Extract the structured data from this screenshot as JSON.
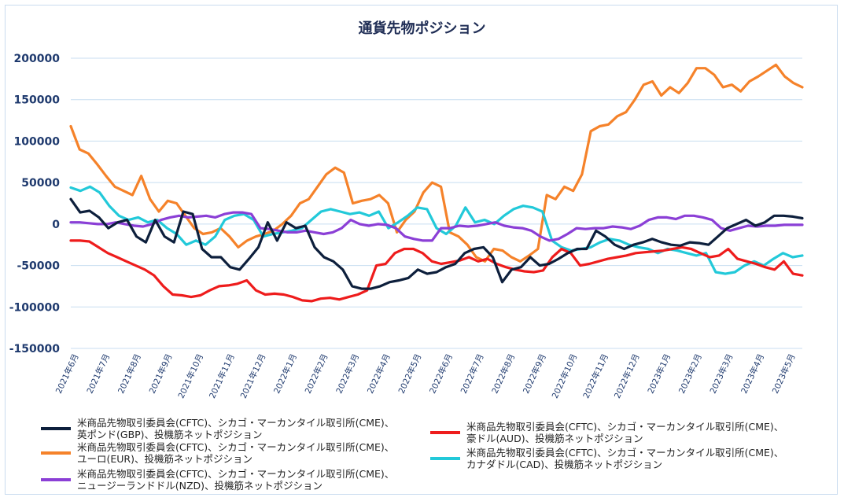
{
  "chart_data": {
    "type": "line",
    "title": "通貨先物ポジション",
    "xlabel": "",
    "ylabel": "",
    "ylim": [
      -150000,
      200000
    ],
    "yticks": [
      200000,
      150000,
      100000,
      50000,
      0,
      -50000,
      -100000,
      -150000
    ],
    "ytick_labels": [
      "200000",
      "150000",
      "100000",
      "50000",
      "0",
      "-50000",
      "-100000",
      "-150000"
    ],
    "grid": true,
    "legend_position": "bottom",
    "x_tick_labels": [
      "2021年6月",
      "2021年7月",
      "2021年8月",
      "2021年9月",
      "2021年10月",
      "2021年11月",
      "2021年12月",
      "2022年1月",
      "2022年2月",
      "2022年3月",
      "2022年4月",
      "2022年5月",
      "2022年6月",
      "2022年7月",
      "2022年8月",
      "2022年9月",
      "2022年10月",
      "2022年11月",
      "2022年12月",
      "2023年1月",
      "2023年2月",
      "2023年3月",
      "2023年4月",
      "2023年5月"
    ],
    "series": [
      {
        "name": "米商品先物取引委員会(CFTC)、シカゴ・マーカンタイル取引所(CME)、\n英ポンド(GBP)、投機筋ネットポジション",
        "color": "#0d1f3c",
        "values": [
          30000,
          14000,
          16000,
          8000,
          -5000,
          2000,
          5000,
          -15000,
          -22000,
          5000,
          -15000,
          -22000,
          15000,
          12000,
          -30000,
          -40000,
          -40000,
          -52000,
          -55000,
          -42000,
          -28000,
          2000,
          -20000,
          2000,
          -5000,
          -2000,
          -28000,
          -40000,
          -45000,
          -55000,
          -75000,
          -78000,
          -78000,
          -75000,
          -70000,
          -68000,
          -65000,
          -55000,
          -60000,
          -58000,
          -52000,
          -48000,
          -35000,
          -30000,
          -28000,
          -40000,
          -70000,
          -55000,
          -52000,
          -40000,
          -50000,
          -48000,
          -42000,
          -35000,
          -30000,
          -30000,
          -8000,
          -15000,
          -25000,
          -30000,
          -25000,
          -22000,
          -18000,
          -22000,
          -25000,
          -26000,
          -22000,
          -23000,
          -25000,
          -15000,
          -5000,
          0,
          5000,
          -2000,
          2000,
          10000,
          10000,
          9000,
          7000
        ]
      },
      {
        "name": "米商品先物取引委員会(CFTC)、シカゴ・マーカンタイル取引所(CME)、\n豪ドル(AUD)、投機筋ネットポジション",
        "color": "#ee1c1c",
        "values": [
          -20000,
          -20000,
          -21000,
          -28000,
          -35000,
          -40000,
          -45000,
          -50000,
          -55000,
          -62000,
          -75000,
          -85000,
          -86000,
          -88000,
          -86000,
          -80000,
          -75000,
          -74000,
          -72000,
          -68000,
          -80000,
          -85000,
          -84000,
          -85000,
          -88000,
          -92000,
          -93000,
          -90000,
          -89000,
          -91000,
          -88000,
          -85000,
          -80000,
          -50000,
          -48000,
          -35000,
          -30000,
          -30000,
          -35000,
          -45000,
          -48000,
          -46000,
          -44000,
          -40000,
          -45000,
          -42000,
          -48000,
          -52000,
          -55000,
          -57000,
          -58000,
          -56000,
          -40000,
          -30000,
          -35000,
          -50000,
          -48000,
          -45000,
          -42000,
          -40000,
          -38000,
          -35000,
          -34000,
          -33000,
          -32000,
          -30000,
          -28000,
          -30000,
          -35000,
          -40000,
          -38000,
          -30000,
          -42000,
          -45000,
          -48000,
          -52000,
          -55000,
          -45000,
          -60000,
          -62000
        ]
      },
      {
        "name": "米商品先物取引委員会(CFTC)、シカゴ・マーカンタイル取引所(CME)、\nユーロ(EUR)、投機筋ネットポジション",
        "color": "#f5822a",
        "values": [
          118000,
          90000,
          85000,
          72000,
          58000,
          45000,
          40000,
          35000,
          58000,
          30000,
          15000,
          28000,
          25000,
          10000,
          -5000,
          -12000,
          -10000,
          -5000,
          -15000,
          -28000,
          -20000,
          -15000,
          -12000,
          -8000,
          0,
          10000,
          25000,
          30000,
          45000,
          60000,
          68000,
          62000,
          25000,
          28000,
          30000,
          35000,
          25000,
          -10000,
          5000,
          15000,
          38000,
          50000,
          45000,
          -10000,
          -15000,
          -25000,
          -40000,
          -45000,
          -30000,
          -32000,
          -40000,
          -45000,
          -38000,
          -30000,
          35000,
          30000,
          45000,
          40000,
          60000,
          112000,
          118000,
          120000,
          130000,
          135000,
          150000,
          168000,
          172000,
          155000,
          165000,
          158000,
          170000,
          188000,
          188000,
          180000,
          165000,
          168000,
          160000,
          172000,
          178000,
          185000,
          192000,
          178000,
          170000,
          165000
        ]
      },
      {
        "name": "米商品先物取引委員会(CFTC)、シカゴ・マーカンタイル取引所(CME)、\nカナダドル(CAD)、投機筋ネットポジション",
        "color": "#22c9d9",
        "values": [
          44000,
          40000,
          45000,
          38000,
          22000,
          10000,
          5000,
          8000,
          2000,
          5000,
          -5000,
          -12000,
          -25000,
          -20000,
          -25000,
          -15000,
          5000,
          10000,
          12000,
          5000,
          -15000,
          -12000,
          -10000,
          -8000,
          -5000,
          5000,
          15000,
          18000,
          15000,
          12000,
          14000,
          10000,
          15000,
          -5000,
          2000,
          10000,
          20000,
          18000,
          -5000,
          -12000,
          -2000,
          20000,
          2000,
          5000,
          0,
          10000,
          18000,
          22000,
          20000,
          15000,
          -20000,
          -28000,
          -32000,
          -30000,
          -28000,
          -22000,
          -18000,
          -20000,
          -25000,
          -28000,
          -30000,
          -35000,
          -30000,
          -32000,
          -35000,
          -38000,
          -35000,
          -58000,
          -60000,
          -58000,
          -50000,
          -45000,
          -50000,
          -42000,
          -35000,
          -40000,
          -38000
        ]
      },
      {
        "name": "米商品先物取引委員会(CFTC)、シカゴ・マーカンタイル取引所(CME)、\nニュージーランドドル(NZD)、投機筋ネットポジション",
        "color": "#8b3fd6",
        "values": [
          2000,
          2000,
          1000,
          0,
          0,
          2000,
          0,
          -2000,
          -3000,
          0,
          5000,
          8000,
          10000,
          8000,
          9000,
          10000,
          8000,
          12000,
          14000,
          14000,
          12000,
          -5000,
          -6000,
          -8000,
          -10000,
          -10000,
          -8000,
          -10000,
          -12000,
          -10000,
          -5000,
          5000,
          0,
          -2000,
          0,
          -1000,
          -5000,
          -15000,
          -18000,
          -20000,
          -20000,
          -5000,
          -5000,
          -2000,
          -3000,
          -2000,
          0,
          2000,
          -2000,
          -4000,
          -5000,
          -8000,
          -15000,
          -20000,
          -18000,
          -12000,
          -5000,
          -6000,
          -5000,
          -5000,
          -3000,
          -4000,
          -6000,
          -2000,
          5000,
          8000,
          8000,
          6000,
          10000,
          10000,
          8000,
          5000,
          -5000,
          -8000,
          -5000,
          -2000,
          -3000,
          -2000,
          -2000,
          -1000,
          -1000,
          -1000
        ]
      }
    ]
  }
}
